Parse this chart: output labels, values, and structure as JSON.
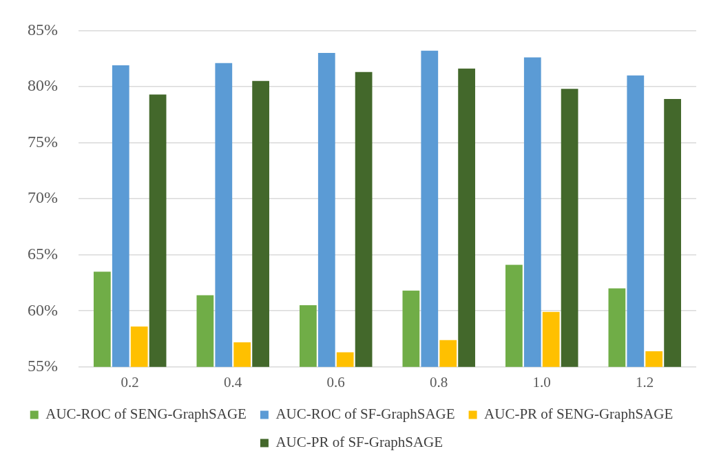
{
  "chart_data": {
    "type": "bar",
    "categories": [
      "0.2",
      "0.4",
      "0.6",
      "0.8",
      "1.0",
      "1.2"
    ],
    "series": [
      {
        "name": "AUC-ROC of SENG-GraphSAGE",
        "color": "#70ad47",
        "values": [
          63.5,
          61.4,
          60.5,
          61.8,
          64.1,
          62.0
        ]
      },
      {
        "name": "AUC-ROC of SF-GraphSAGE",
        "color": "#5b9bd5",
        "values": [
          81.9,
          82.1,
          83.0,
          83.2,
          82.6,
          81.0
        ]
      },
      {
        "name": "AUC-PR of SENG-GraphSAGE",
        "color": "#ffc000",
        "values": [
          58.6,
          57.2,
          56.3,
          57.4,
          59.9,
          56.4
        ]
      },
      {
        "name": "AUC-PR of SF-GraphSAGE",
        "color": "#43682b",
        "values": [
          79.3,
          80.5,
          81.3,
          81.6,
          79.8,
          78.9
        ]
      }
    ],
    "ylim": [
      55,
      85
    ],
    "yticks": [
      {
        "value": 55,
        "label": "55%"
      },
      {
        "value": 60,
        "label": "60%"
      },
      {
        "value": 65,
        "label": "65%"
      },
      {
        "value": 70,
        "label": "70%"
      },
      {
        "value": 75,
        "label": "75%"
      },
      {
        "value": 80,
        "label": "80%"
      },
      {
        "value": 85,
        "label": "85%"
      }
    ],
    "grid": "y",
    "legend": "bottom"
  }
}
